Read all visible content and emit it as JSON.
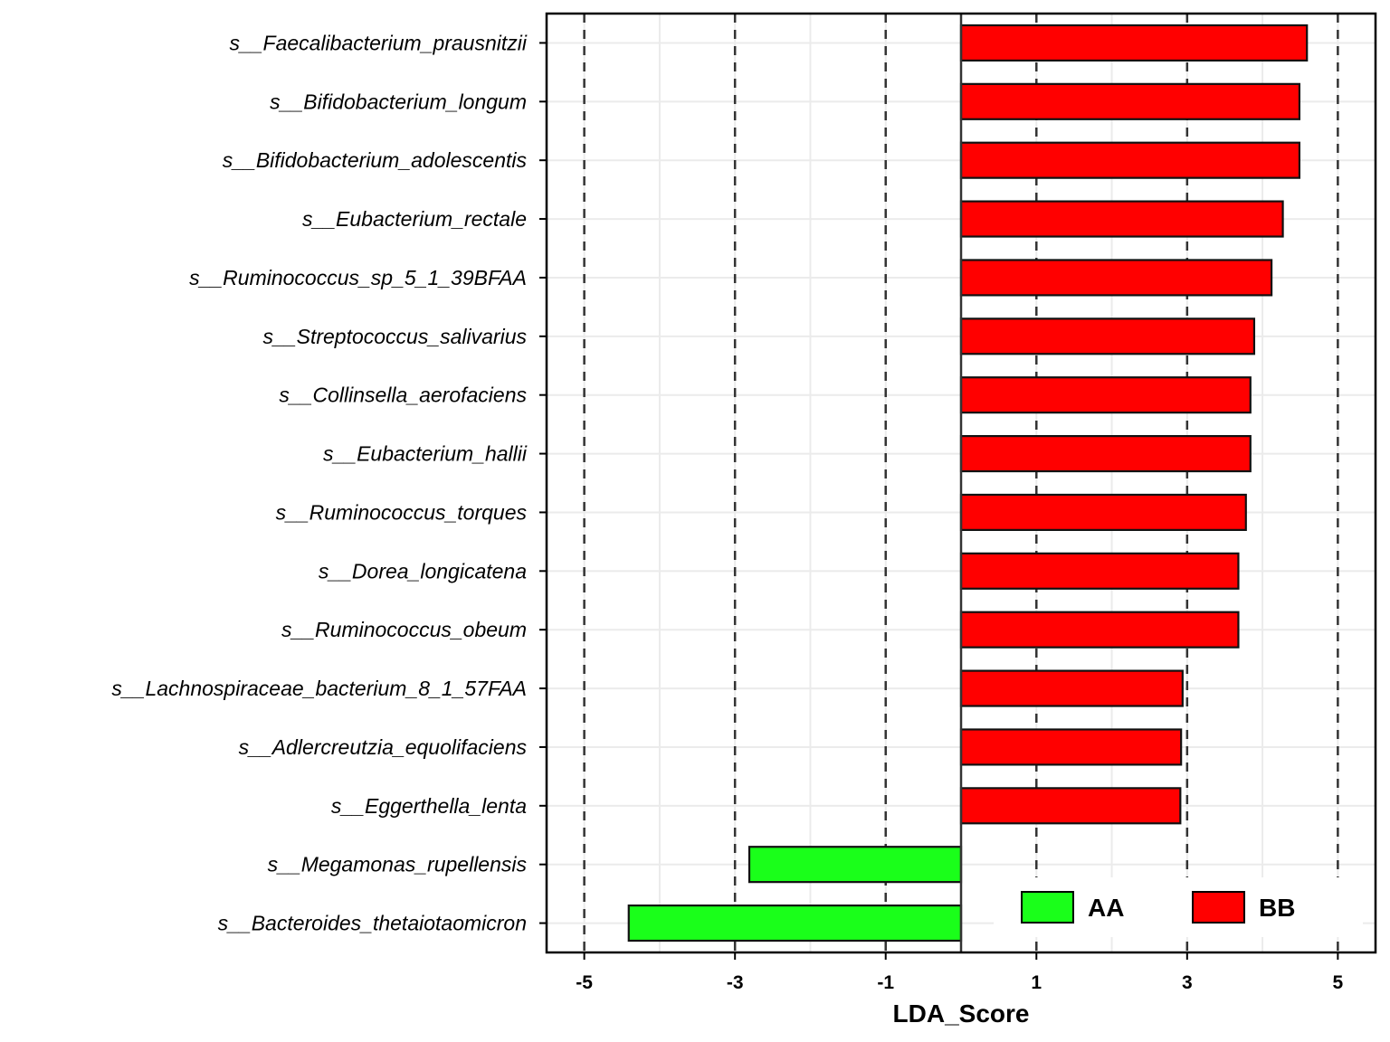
{
  "chart_data": {
    "type": "bar",
    "orientation": "horizontal",
    "categories": [
      "s__Faecalibacterium_prausnitzii",
      "s__Bifidobacterium_longum",
      "s__Bifidobacterium_adolescentis",
      "s__Eubacterium_rectale",
      "s__Ruminococcus_sp_5_1_39BFAA",
      "s__Streptococcus_salivarius",
      "s__Collinsella_aerofaciens",
      "s__Eubacterium_hallii",
      "s__Ruminococcus_torques",
      "s__Dorea_longicatena",
      "s__Ruminococcus_obeum",
      "s__Lachnospiraceae_bacterium_8_1_57FAA",
      "s__Adlercreutzia_equolifaciens",
      "s__Eggerthella_lenta",
      "s__Megamonas_rupellensis",
      "s__Bacteroides_thetaiotaomicron"
    ],
    "values": [
      4.59,
      4.49,
      4.49,
      4.27,
      4.12,
      3.89,
      3.84,
      3.84,
      3.78,
      3.68,
      3.68,
      2.94,
      2.92,
      2.91,
      -2.81,
      -4.41
    ],
    "groups": [
      "BB",
      "BB",
      "BB",
      "BB",
      "BB",
      "BB",
      "BB",
      "BB",
      "BB",
      "BB",
      "BB",
      "BB",
      "BB",
      "BB",
      "AA",
      "AA"
    ],
    "xlabel": "LDA_Score",
    "ylabel": "",
    "xlim": [
      -5.5,
      5.5
    ],
    "xticks": [
      "-5",
      "-3",
      "-1",
      "1",
      "3",
      "5"
    ],
    "xtick_values": [
      -5,
      -3,
      -1,
      1,
      3,
      5
    ],
    "dashed_reference_lines": [
      -5,
      -3,
      -1,
      1,
      3,
      5
    ],
    "zero_line": 0,
    "grid": true,
    "legend": {
      "position": "bottom-right",
      "entries": [
        {
          "label": "AA",
          "color": "#1aff1a"
        },
        {
          "label": "BB",
          "color": "#ff0000"
        }
      ]
    },
    "colors": {
      "AA": "#1aff1a",
      "BB": "#ff0000"
    }
  }
}
